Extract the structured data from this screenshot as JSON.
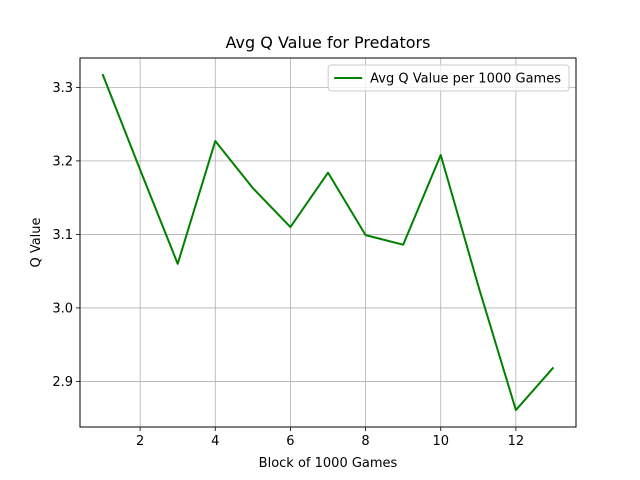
{
  "chart_data": {
    "type": "line",
    "title": "Avg Q Value for Predators",
    "xlabel": "Block of 1000 Games",
    "ylabel": "Q Value",
    "xlim": [
      0.4,
      13.6
    ],
    "ylim": [
      2.838,
      3.34
    ],
    "xticks": [
      2,
      4,
      6,
      8,
      10,
      12
    ],
    "yticks": [
      2.9,
      3.0,
      3.1,
      3.2,
      3.3
    ],
    "grid": true,
    "legend_position": "upper right",
    "series": [
      {
        "name": "Avg Q Value per 1000 Games",
        "color": "#008000",
        "x": [
          1,
          2,
          3,
          4,
          5,
          6,
          7,
          8,
          9,
          10,
          11,
          12,
          13
        ],
        "y": [
          3.318,
          3.188,
          3.06,
          3.227,
          3.163,
          3.11,
          3.184,
          3.099,
          3.086,
          3.208,
          3.03,
          2.861,
          2.919
        ]
      }
    ]
  }
}
